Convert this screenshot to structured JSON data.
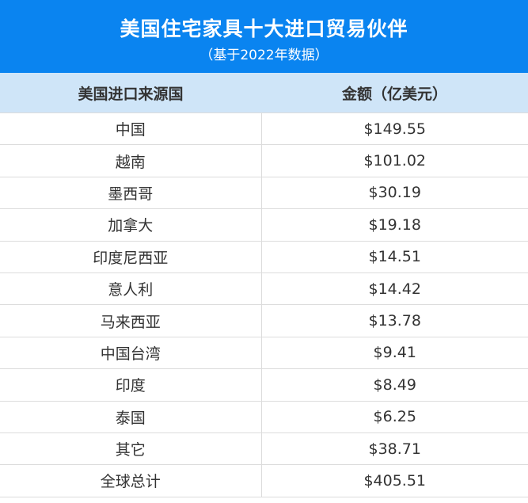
{
  "title": "美国住宅家具十大进口贸易伙伴",
  "subtitle": "（基于2022年数据）",
  "colors": {
    "banner": "#0a84f0",
    "header_row": "#cfe5f8"
  },
  "chart_data": {
    "type": "table",
    "title": "美国住宅家具十大进口贸易伙伴",
    "subtitle": "（基于2022年数据）",
    "columns": [
      "美国进口来源国",
      "金额（亿美元）"
    ],
    "rows": [
      [
        "中国",
        "$149.55"
      ],
      [
        "越南",
        "$101.02"
      ],
      [
        "墨西哥",
        "$30.19"
      ],
      [
        "加拿大",
        "$19.18"
      ],
      [
        "印度尼西亚",
        "$14.51"
      ],
      [
        "意人利",
        "$14.42"
      ],
      [
        "马来西亚",
        "$13.78"
      ],
      [
        "中国台湾",
        "$9.41"
      ],
      [
        "印度",
        "$8.49"
      ],
      [
        "泰国",
        "$6.25"
      ],
      [
        "其它",
        "$38.71"
      ],
      [
        "全球总计",
        "$405.51"
      ]
    ]
  }
}
